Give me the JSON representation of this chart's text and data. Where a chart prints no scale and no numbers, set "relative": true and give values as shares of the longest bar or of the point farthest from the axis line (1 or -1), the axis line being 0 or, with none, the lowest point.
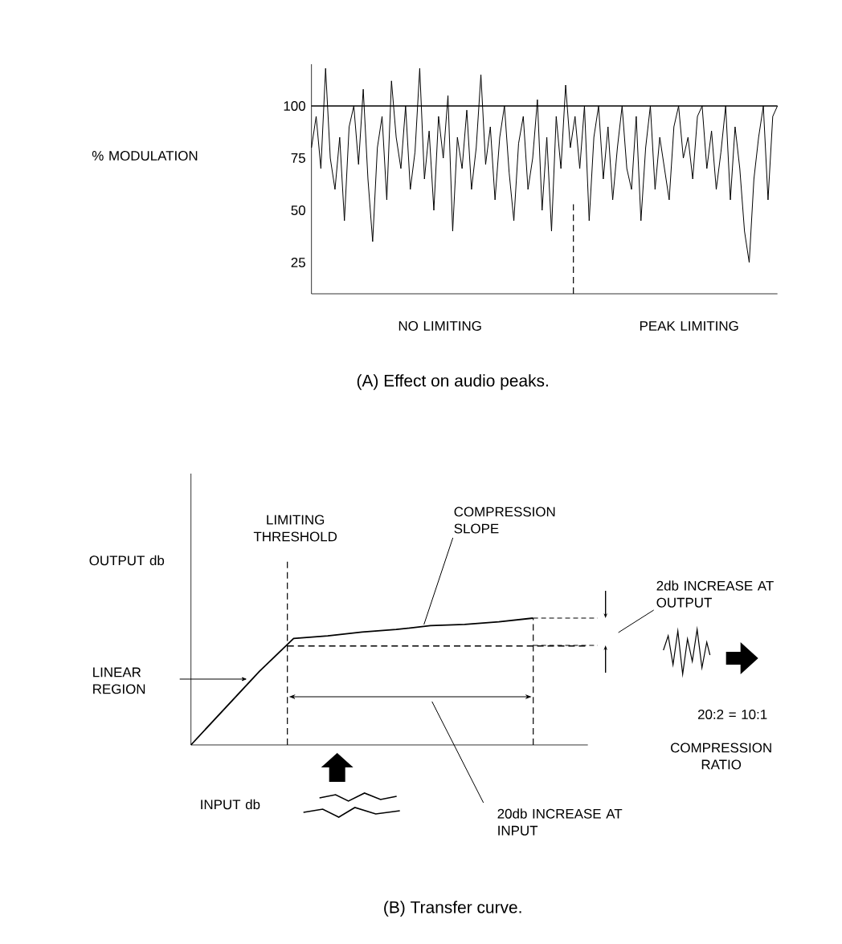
{
  "chart_data": [
    {
      "type": "line",
      "title": "(A) Effect on audio peaks.",
      "ylabel": "% MODULATION",
      "categories": [
        null,
        null,
        null,
        null,
        null,
        null,
        null,
        null,
        null,
        null,
        null,
        null,
        null,
        null,
        null,
        null,
        null,
        null,
        null,
        null,
        null,
        null,
        null,
        null,
        null,
        null,
        null,
        null,
        null,
        null,
        null,
        null,
        null,
        null,
        null,
        null,
        null,
        null,
        null,
        null,
        null,
        null,
        null,
        null,
        null,
        null,
        null,
        null,
        null,
        null,
        null,
        null,
        null,
        null,
        null,
        null,
        null,
        null,
        null,
        null,
        null,
        null,
        null,
        null,
        null,
        null,
        null,
        null,
        null,
        null,
        null,
        null,
        null,
        null,
        null,
        null,
        null,
        null,
        null,
        null,
        null,
        null,
        null,
        null,
        null,
        null,
        null,
        null,
        null,
        null,
        null,
        null,
        null,
        null,
        null,
        null,
        null,
        null,
        null,
        null
      ],
      "values": [
        80,
        95,
        70,
        118,
        75,
        60,
        85,
        45,
        90,
        100,
        72,
        108,
        65,
        35,
        80,
        95,
        55,
        112,
        85,
        70,
        100,
        60,
        78,
        118,
        65,
        88,
        50,
        95,
        75,
        105,
        40,
        85,
        70,
        98,
        60,
        80,
        115,
        72,
        90,
        55,
        85,
        100,
        68,
        45,
        82,
        95,
        60,
        75,
        103,
        50,
        85,
        40,
        95,
        70,
        110,
        80,
        95,
        70,
        100,
        45,
        85,
        100,
        65,
        90,
        55,
        80,
        100,
        70,
        60,
        95,
        45,
        80,
        100,
        60,
        85,
        70,
        55,
        90,
        100,
        75,
        85,
        65,
        95,
        100,
        70,
        88,
        60,
        78,
        100,
        55,
        90,
        70,
        40,
        25,
        65,
        85,
        100,
        55,
        95,
        100
      ],
      "color": "#000000",
      "ylim": [
        10,
        120
      ],
      "yticks": [
        25,
        50,
        75,
        100
      ],
      "tick_labels": "y",
      "ref_lines": [
        {
          "axis": "y",
          "value": 100,
          "line_style": "solid"
        }
      ],
      "annotations": [
        "NO LIMITING",
        "PEAK LIMITING"
      ]
    },
    {
      "type": "line",
      "relative": true,
      "title": "(B) Transfer curve.",
      "xlabel": "INPUT db",
      "ylabel": "OUTPUT db",
      "categories": [
        null,
        null,
        null,
        null,
        null,
        null,
        null,
        null,
        null,
        null,
        null
      ],
      "values": [
        0,
        0.29,
        0.58,
        0.84,
        0.86,
        0.89,
        0.91,
        0.94,
        0.95,
        0.97,
        1.0
      ],
      "color": "#000000",
      "tick_labels": false,
      "ref_lines": [
        {
          "axis": "y",
          "value": 0.78,
          "line_style": "dashed"
        }
      ],
      "annotations": [
        "LINEAR REGION",
        "COMPRESSION SLOPE",
        "2db INCREASE AT OUTPUT",
        "20db INCREASE AT INPUT",
        "20:2 = 10:1",
        "COMPRESSION RATIO",
        "LIMITING THRESHOLD"
      ]
    }
  ]
}
